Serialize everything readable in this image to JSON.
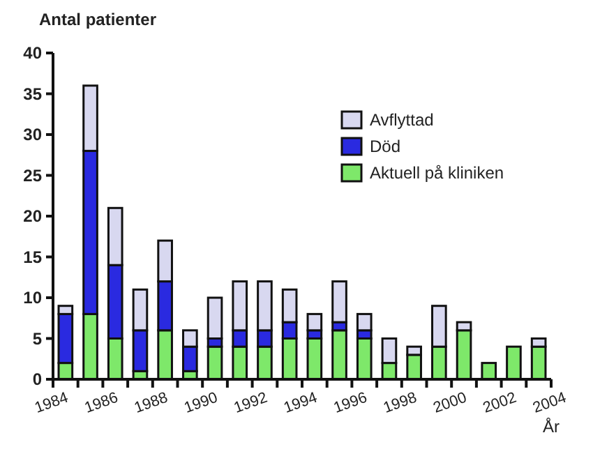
{
  "chart_data": {
    "type": "bar",
    "stacked": true,
    "ylabel": "Antal patienter",
    "xlabel": "År",
    "x": [
      1984.5,
      1985.5,
      1986.5,
      1987.5,
      1988.5,
      1989.5,
      1990.5,
      1991.5,
      1992.5,
      1993.5,
      1994.5,
      1995.5,
      1996.5,
      1997.5,
      1998.5,
      1999.5,
      2000.5,
      2001.5,
      2002.5,
      2003.5
    ],
    "series": [
      {
        "name": "Aktuell på kliniken",
        "color": "#7ee86a",
        "values": [
          2,
          8,
          5,
          1,
          6,
          1,
          4,
          4,
          4,
          5,
          5,
          6,
          5,
          2,
          3,
          4,
          6,
          2,
          4,
          4
        ]
      },
      {
        "name": "Död",
        "color": "#2a2ae0",
        "values": [
          6,
          20,
          9,
          5,
          6,
          3,
          1,
          2,
          2,
          2,
          1,
          1,
          1,
          0,
          0,
          0,
          0,
          0,
          0,
          0
        ]
      },
      {
        "name": "Avflyttad",
        "color": "#d8d8f0",
        "values": [
          1,
          8,
          7,
          5,
          5,
          2,
          5,
          6,
          6,
          4,
          2,
          5,
          2,
          3,
          1,
          5,
          1,
          0,
          0,
          1
        ]
      }
    ],
    "xlim": [
      1984,
      2004
    ],
    "xticks": [
      1984,
      {
        "value": 1985,
        "label": null
      },
      1986,
      {
        "value": 1987,
        "label": null
      },
      1988,
      {
        "value": 1989,
        "label": null
      },
      1990,
      {
        "value": 1991,
        "label": null
      },
      1992,
      {
        "value": 1993,
        "label": null
      },
      1994,
      {
        "value": 1995,
        "label": null
      },
      1996,
      {
        "value": 1997,
        "label": null
      },
      1998,
      {
        "value": 1999,
        "label": null
      },
      2000,
      {
        "value": 2001,
        "label": null
      },
      2002,
      {
        "value": 2003,
        "label": null
      },
      2004
    ],
    "ylim": [
      0,
      40
    ],
    "yticks": [
      0,
      5,
      10,
      15,
      20,
      25,
      30,
      35,
      40
    ],
    "legend": "top right",
    "grid": false
  }
}
